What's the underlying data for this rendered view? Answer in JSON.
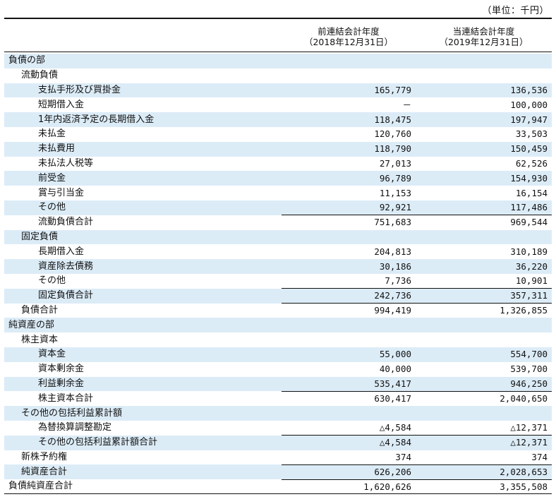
{
  "unit_label": "（単位：千円）",
  "header": {
    "col1": [
      "前連結会計年度",
      "（2018年12月31日）"
    ],
    "col2": [
      "当連結会計年度",
      "（2019年12月31日）"
    ]
  },
  "rows": [
    {
      "label": "負債の部",
      "level": 0,
      "v1": "",
      "v2": "",
      "shade": true,
      "sub": false
    },
    {
      "label": "流動負債",
      "level": 1,
      "v1": "",
      "v2": "",
      "shade": false,
      "sub": false
    },
    {
      "label": "支払手形及び買掛金",
      "level": 2,
      "v1": "165,779",
      "v2": "136,536",
      "shade": true,
      "sub": false
    },
    {
      "label": "短期借入金",
      "level": 2,
      "v1": "－",
      "v2": "100,000",
      "shade": false,
      "sub": false
    },
    {
      "label": "1年内返済予定の長期借入金",
      "level": 2,
      "v1": "118,475",
      "v2": "197,947",
      "shade": true,
      "sub": false
    },
    {
      "label": "未払金",
      "level": 2,
      "v1": "120,760",
      "v2": "33,503",
      "shade": false,
      "sub": false
    },
    {
      "label": "未払費用",
      "level": 2,
      "v1": "118,790",
      "v2": "150,459",
      "shade": true,
      "sub": false
    },
    {
      "label": "未払法人税等",
      "level": 2,
      "v1": "27,013",
      "v2": "62,526",
      "shade": false,
      "sub": false
    },
    {
      "label": "前受金",
      "level": 2,
      "v1": "96,789",
      "v2": "154,930",
      "shade": true,
      "sub": false
    },
    {
      "label": "賞与引当金",
      "level": 2,
      "v1": "11,153",
      "v2": "16,154",
      "shade": false,
      "sub": false
    },
    {
      "label": "その他",
      "level": 2,
      "v1": "92,921",
      "v2": "117,486",
      "shade": true,
      "sub": false
    },
    {
      "label": "流動負債合計",
      "level": 2,
      "v1": "751,683",
      "v2": "969,544",
      "shade": false,
      "sub": true
    },
    {
      "label": "固定負債",
      "level": 1,
      "v1": "",
      "v2": "",
      "shade": true,
      "sub": false
    },
    {
      "label": "長期借入金",
      "level": 2,
      "v1": "204,813",
      "v2": "310,189",
      "shade": false,
      "sub": false
    },
    {
      "label": "資産除去債務",
      "level": 2,
      "v1": "30,186",
      "v2": "36,220",
      "shade": true,
      "sub": false
    },
    {
      "label": "その他",
      "level": 2,
      "v1": "7,736",
      "v2": "10,901",
      "shade": false,
      "sub": false
    },
    {
      "label": "固定負債合計",
      "level": 2,
      "v1": "242,736",
      "v2": "357,311",
      "shade": true,
      "sub": true
    },
    {
      "label": "負債合計",
      "level": 1,
      "v1": "994,419",
      "v2": "1,326,855",
      "shade": false,
      "sub": true
    },
    {
      "label": "純資産の部",
      "level": 0,
      "v1": "",
      "v2": "",
      "shade": true,
      "sub": false
    },
    {
      "label": "株主資本",
      "level": 1,
      "v1": "",
      "v2": "",
      "shade": false,
      "sub": false
    },
    {
      "label": "資本金",
      "level": 2,
      "v1": "55,000",
      "v2": "554,700",
      "shade": true,
      "sub": false
    },
    {
      "label": "資本剰余金",
      "level": 2,
      "v1": "40,000",
      "v2": "539,700",
      "shade": false,
      "sub": false
    },
    {
      "label": "利益剰余金",
      "level": 2,
      "v1": "535,417",
      "v2": "946,250",
      "shade": true,
      "sub": false
    },
    {
      "label": "株主資本合計",
      "level": 2,
      "v1": "630,417",
      "v2": "2,040,650",
      "shade": false,
      "sub": true
    },
    {
      "label": "その他の包括利益累計額",
      "level": 1,
      "v1": "",
      "v2": "",
      "shade": true,
      "sub": false
    },
    {
      "label": "為替換算調整勘定",
      "level": 2,
      "v1": "△4,584",
      "v2": "△12,371",
      "shade": false,
      "sub": false
    },
    {
      "label": "その他の包括利益累計額合計",
      "level": 2,
      "v1": "△4,584",
      "v2": "△12,371",
      "shade": true,
      "sub": true
    },
    {
      "label": "新株予約権",
      "level": 1,
      "v1": "374",
      "v2": "374",
      "shade": false,
      "sub": false
    },
    {
      "label": "純資産合計",
      "level": 1,
      "v1": "626,206",
      "v2": "2,028,653",
      "shade": true,
      "sub": true
    },
    {
      "label": "負債純資産合計",
      "level": 0,
      "v1": "1,620,626",
      "v2": "3,355,508",
      "shade": false,
      "sub": true
    }
  ]
}
